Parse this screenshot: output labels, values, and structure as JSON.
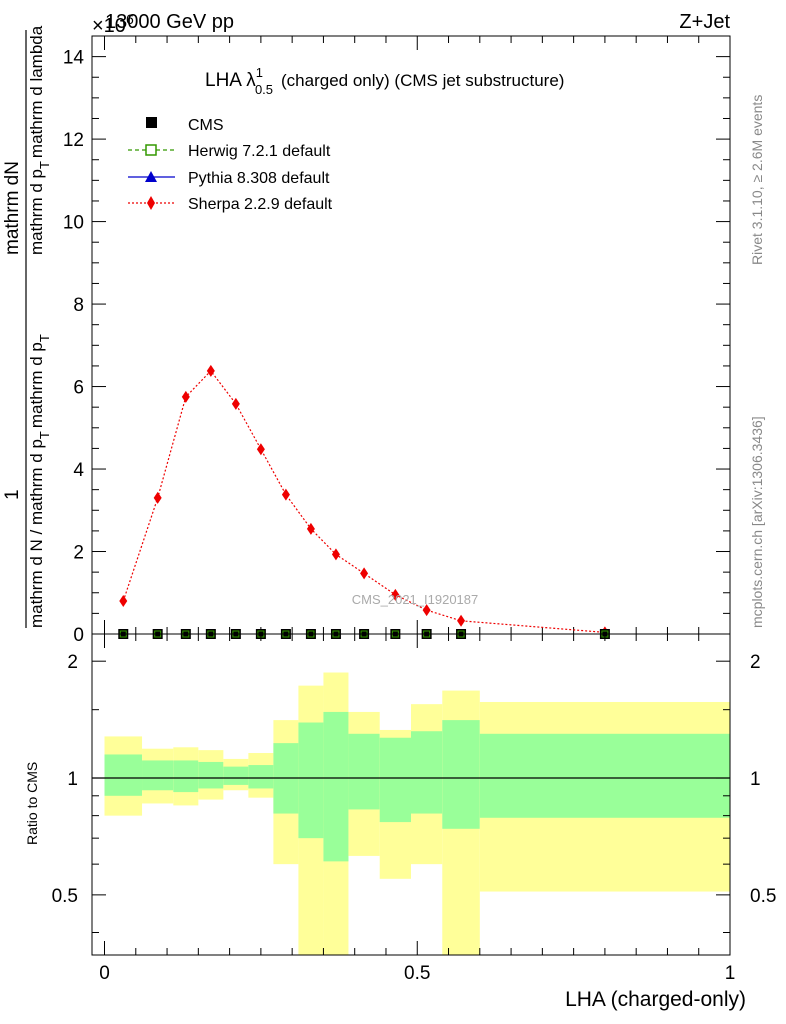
{
  "header": {
    "energy": "13000 GeV pp",
    "process": "Z+Jet",
    "exponent": "×10",
    "exponent_power": "6"
  },
  "main_plot": {
    "title_prefix": "LHA λ",
    "title_sup": "1",
    "title_sub": "0.5",
    "title_suffix": "(charged only) (CMS jet substructure)",
    "ylabel_numerator": "mathrm dN",
    "ylabel_numerator_mid": "mathrm d p",
    "ylabel_numerator_sub": "T",
    "ylabel_numerator_tail": "mathrm d lambda",
    "ylabel_one": "1",
    "ylabel_denominator": "mathrm d N / mathrm d p",
    "ylabel_denominator_sub": "T",
    "ylabel_denominator_tail": "mathrm d p",
    "ylabel_denominator_sub2": "T",
    "watermark": "CMS_2021_I1920187"
  },
  "legend": {
    "cms": "CMS",
    "herwig": "Herwig 7.2.1 default",
    "pythia": "Pythia 8.308 default",
    "sherpa": "Sherpa 2.2.9 default"
  },
  "side_labels": {
    "rivet": "Rivet 3.1.10, ≥ 2.6M events",
    "mcplots": "mcplots.cern.ch [arXiv:1306.3436]"
  },
  "ratio_plot": {
    "ylabel": "Ratio to CMS"
  },
  "xlabel": "LHA (charged-only)",
  "colors": {
    "herwig": "#339900",
    "pythia": "#0000cc",
    "sherpa": "#ee0000",
    "band_inner": "#99ff99",
    "band_outer": "#ffff99"
  },
  "chart_data": {
    "type": "line",
    "x_ticks": [
      "0",
      "0.5",
      "1"
    ],
    "y_ticks_main": [
      "0",
      "2",
      "4",
      "6",
      "8",
      "10",
      "12",
      "14"
    ],
    "y_ticks_ratio": [
      "0.5",
      "1",
      "2"
    ],
    "xlim": [
      -0.02,
      1.0
    ],
    "ylim_main": [
      0,
      14.5
    ],
    "ylim_ratio": [
      0.35,
      2.35
    ],
    "ratio_yscale": "log",
    "sherpa": {
      "x": [
        0.03,
        0.085,
        0.13,
        0.17,
        0.21,
        0.25,
        0.29,
        0.33,
        0.37,
        0.415,
        0.465,
        0.515,
        0.57,
        0.8
      ],
      "y": [
        0.8,
        3.3,
        5.75,
        6.38,
        5.58,
        4.48,
        3.38,
        2.55,
        1.93,
        1.47,
        0.95,
        0.58,
        0.32,
        0.04
      ]
    },
    "cms_points": {
      "x": [
        0.03,
        0.085,
        0.13,
        0.17,
        0.21,
        0.25,
        0.29,
        0.33,
        0.37,
        0.415,
        0.465,
        0.515,
        0.57,
        0.8
      ],
      "y": [
        0.0,
        0.0,
        0.0,
        0.0,
        0.0,
        0.0,
        0.0,
        0.0,
        0.0,
        0.0,
        0.0,
        0.0,
        0.0,
        0.0
      ]
    },
    "ratio_bins": {
      "edges": [
        0.0,
        0.06,
        0.11,
        0.15,
        0.19,
        0.23,
        0.27,
        0.31,
        0.35,
        0.39,
        0.44,
        0.49,
        0.54,
        0.6,
        1.0
      ],
      "inner_hi": [
        1.15,
        1.11,
        1.11,
        1.1,
        1.07,
        1.08,
        1.23,
        1.39,
        1.48,
        1.3,
        1.27,
        1.32,
        1.41,
        1.3
      ],
      "inner_lo": [
        0.9,
        0.93,
        0.92,
        0.94,
        0.96,
        0.94,
        0.81,
        0.7,
        0.61,
        0.83,
        0.77,
        0.81,
        0.74,
        0.79
      ],
      "outer_hi": [
        1.28,
        1.19,
        1.2,
        1.18,
        1.12,
        1.16,
        1.41,
        1.73,
        1.87,
        1.48,
        1.33,
        1.55,
        1.68,
        1.57
      ],
      "outer_lo": [
        0.8,
        0.86,
        0.85,
        0.88,
        0.93,
        0.89,
        0.6,
        0.3,
        0.3,
        0.63,
        0.55,
        0.6,
        0.3,
        0.51
      ]
    }
  }
}
